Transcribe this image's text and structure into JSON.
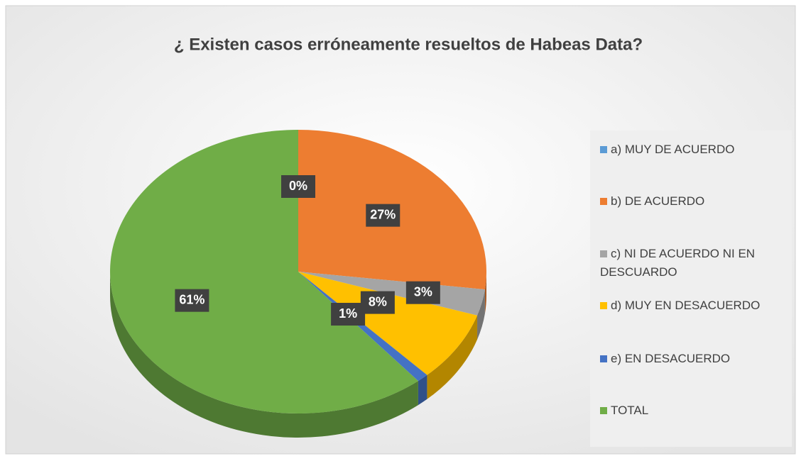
{
  "chart_data": {
    "type": "pie",
    "title": "¿ Existen casos erróneamente resueltos  de Habeas Data?",
    "categories": [
      "a)  MUY DE ACUERDO",
      "b) DE ACUERDO",
      "c) NI DE ACUERDO NI EN DESCUARDO",
      "d) MUY EN DESACUERDO",
      "e) EN DESACUERDO",
      "TOTAL"
    ],
    "values": [
      0,
      27,
      3,
      8,
      1,
      61
    ],
    "value_labels": [
      "0%",
      "27%",
      "3%",
      "8%",
      "1%",
      "61%"
    ],
    "colors": [
      "#5b9bd5",
      "#ed7d31",
      "#a5a5a5",
      "#ffc000",
      "#4472c4",
      "#70ad47"
    ],
    "legend": "right"
  }
}
